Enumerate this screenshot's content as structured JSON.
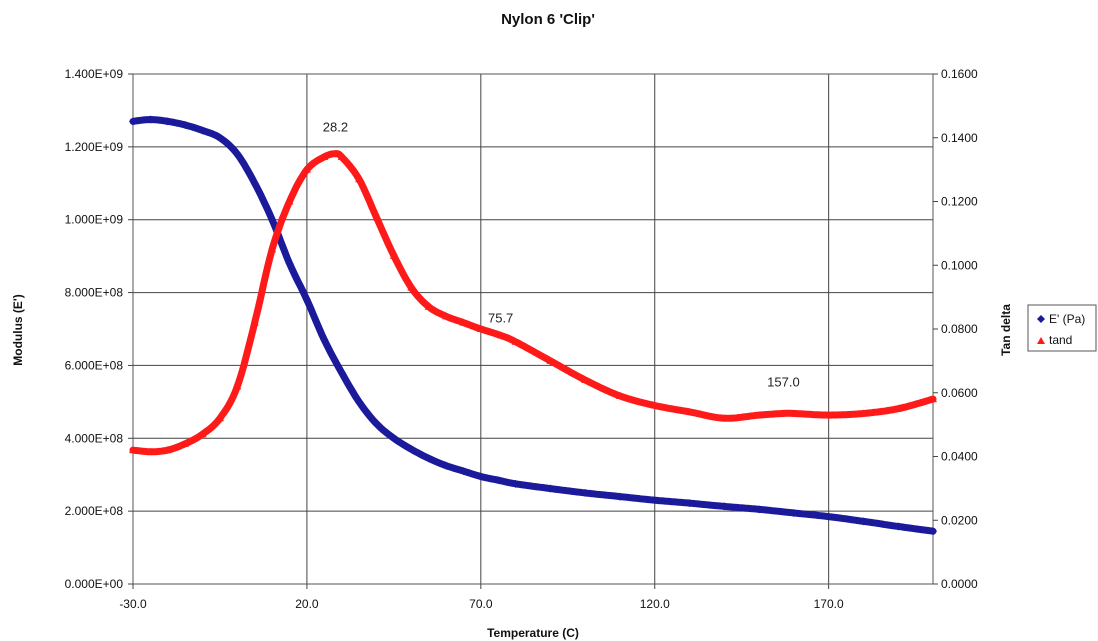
{
  "chart_data": {
    "type": "line",
    "title": "Nylon 6 'Clip'",
    "xlabel": "Temperature (C)",
    "ylabel": "Modulus (E')",
    "y2label": "Tan delta",
    "xlim": [
      -30,
      200
    ],
    "ylim": [
      0,
      1400000000
    ],
    "y2lim": [
      0,
      0.16
    ],
    "x_ticks": [
      -30,
      20,
      70,
      120,
      170
    ],
    "x_tick_labels": [
      "-30.0",
      "20.0",
      "70.0",
      "120.0",
      "170.0"
    ],
    "y_ticks": [
      0,
      200000000,
      400000000,
      600000000,
      800000000,
      1000000000,
      1200000000,
      1400000000
    ],
    "y_tick_labels": [
      "0.000E+00",
      "2.000E+08",
      "4.000E+08",
      "6.000E+08",
      "8.000E+08",
      "1.000E+09",
      "1.200E+09",
      "1.400E+09"
    ],
    "y2_ticks": [
      0,
      0.02,
      0.04,
      0.06,
      0.08,
      0.1,
      0.12,
      0.14,
      0.16
    ],
    "y2_tick_labels": [
      "0.0000",
      "0.0200",
      "0.0400",
      "0.0600",
      "0.0800",
      "0.1000",
      "0.1200",
      "0.1400",
      "0.1600"
    ],
    "grid": true,
    "legend": "right",
    "series": [
      {
        "name": "E' (Pa)",
        "axis": "left",
        "color": "#1a1a9a",
        "marker": "diamond",
        "x": [
          -30,
          -25,
          -20,
          -15,
          -10,
          -5,
          0,
          5,
          10,
          15,
          20,
          25,
          30,
          35,
          40,
          45,
          50,
          55,
          60,
          65,
          70,
          75,
          80,
          90,
          100,
          110,
          120,
          130,
          140,
          150,
          160,
          170,
          180,
          190,
          200
        ],
        "values": [
          1270000000,
          1275000000,
          1270000000,
          1260000000,
          1245000000,
          1225000000,
          1180000000,
          1100000000,
          1000000000,
          880000000,
          780000000,
          670000000,
          580000000,
          500000000,
          440000000,
          400000000,
          370000000,
          345000000,
          325000000,
          310000000,
          295000000,
          285000000,
          275000000,
          262000000,
          250000000,
          240000000,
          230000000,
          222000000,
          213000000,
          205000000,
          195000000,
          185000000,
          172000000,
          158000000,
          145000000
        ]
      },
      {
        "name": "tand",
        "axis": "right",
        "color": "#ff1a1a",
        "marker": "triangle",
        "x": [
          -30,
          -25,
          -20,
          -15,
          -10,
          -5,
          0,
          5,
          10,
          15,
          20,
          25,
          28.2,
          30,
          35,
          40,
          45,
          50,
          55,
          60,
          65,
          70,
          75.7,
          80,
          90,
          100,
          110,
          120,
          130,
          140,
          150,
          157,
          160,
          170,
          180,
          190,
          200
        ],
        "values": [
          0.042,
          0.0415,
          0.042,
          0.044,
          0.047,
          0.052,
          0.062,
          0.082,
          0.105,
          0.12,
          0.13,
          0.134,
          0.135,
          0.134,
          0.127,
          0.115,
          0.103,
          0.093,
          0.087,
          0.084,
          0.082,
          0.08,
          0.078,
          0.076,
          0.07,
          0.064,
          0.059,
          0.056,
          0.054,
          0.052,
          0.053,
          0.0535,
          0.0535,
          0.053,
          0.0535,
          0.055,
          0.058
        ]
      }
    ],
    "annotations": [
      {
        "text": "28.2",
        "x": 28.2,
        "y2": 0.142
      },
      {
        "text": "75.7",
        "x": 75.7,
        "y2": 0.082
      },
      {
        "text": "157.0",
        "x": 157.0,
        "y2": 0.062
      }
    ]
  }
}
